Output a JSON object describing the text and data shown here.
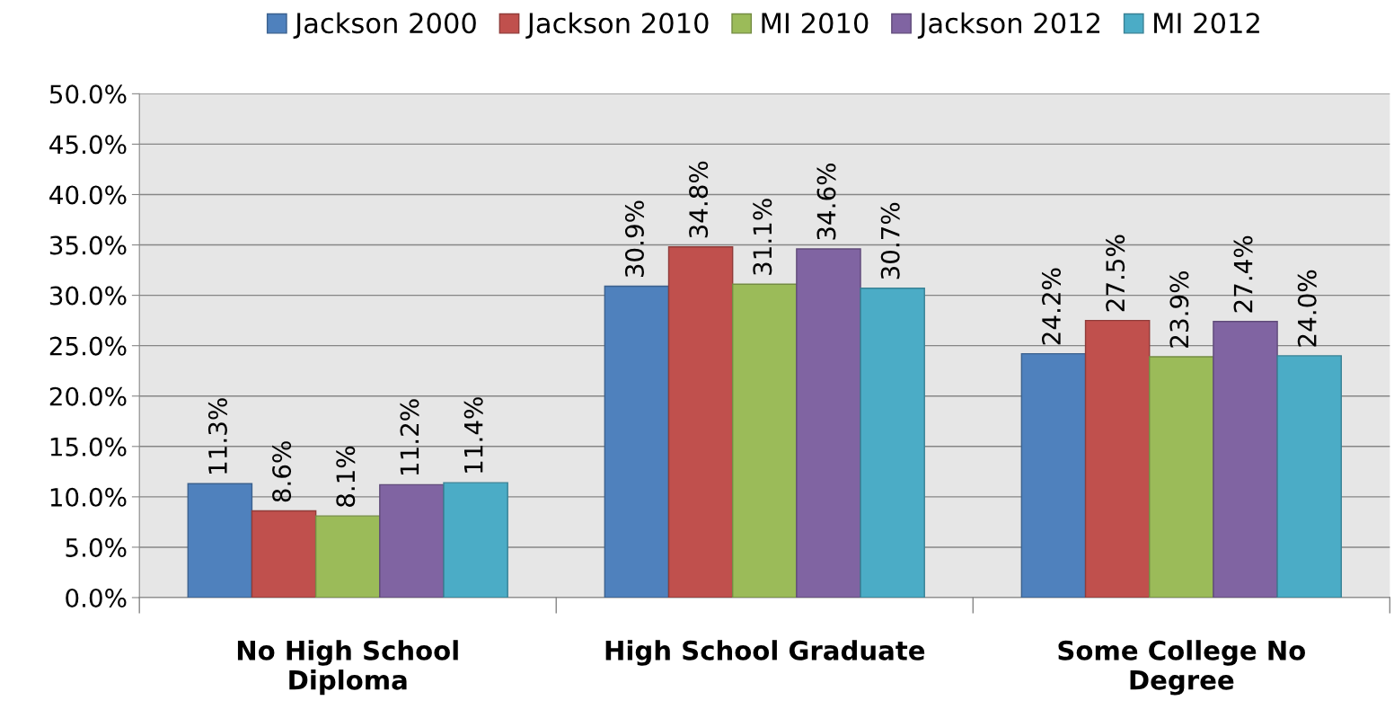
{
  "chart_data": {
    "type": "bar",
    "categories": [
      "No High School\nDiploma",
      "High School Graduate",
      "Some College No\nDegree"
    ],
    "series": [
      {
        "name": "Jackson 2000",
        "color": "#4f81bd",
        "values": [
          11.3,
          30.9,
          24.2
        ],
        "value_labels": [
          "11.3%",
          "30.9%",
          "24.2%"
        ]
      },
      {
        "name": "Jackson 2010",
        "color": "#c0504d",
        "values": [
          8.6,
          34.8,
          27.5
        ],
        "value_labels": [
          "8.6%",
          "34.8%",
          "27.5%"
        ]
      },
      {
        "name": "MI 2010",
        "color": "#9bbb59",
        "values": [
          8.1,
          31.1,
          23.9
        ],
        "value_labels": [
          "8.1%",
          "31.1%",
          "23.9%"
        ]
      },
      {
        "name": "Jackson 2012",
        "color": "#8064a2",
        "values": [
          11.2,
          34.6,
          27.4
        ],
        "value_labels": [
          "11.2%",
          "34.6%",
          "27.4%"
        ]
      },
      {
        "name": "MI 2012",
        "color": "#4bacc6",
        "values": [
          11.4,
          30.7,
          24.0
        ],
        "value_labels": [
          "11.4%",
          "30.7%",
          "24.0%"
        ]
      }
    ],
    "ylim": [
      0,
      50
    ],
    "yticks": [
      {
        "value": 0,
        "label": "0.0%"
      },
      {
        "value": 5,
        "label": "5.0%"
      },
      {
        "value": 10,
        "label": "10.0%"
      },
      {
        "value": 15,
        "label": "15.0%"
      },
      {
        "value": 20,
        "label": "20.0%"
      },
      {
        "value": 25,
        "label": "25.0%"
      },
      {
        "value": 30,
        "label": "30.0%"
      },
      {
        "value": 35,
        "label": "35.0%"
      },
      {
        "value": 40,
        "label": "40.0%"
      },
      {
        "value": 45,
        "label": "45.0%"
      },
      {
        "value": 50,
        "label": "50.0%"
      }
    ],
    "grid": "y",
    "legend": "top"
  }
}
